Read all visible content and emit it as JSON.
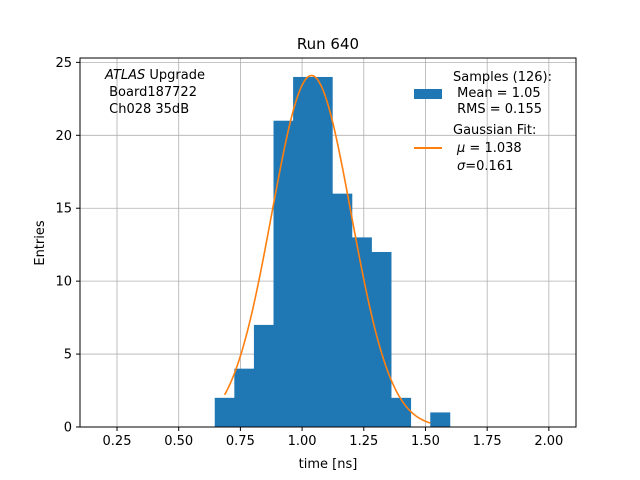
{
  "chart_data": {
    "type": "bar",
    "title": "Run 640",
    "xlabel": "time [ns]",
    "ylabel": "Entries",
    "xlim": [
      0.1,
      2.11
    ],
    "ylim": [
      0,
      25.3
    ],
    "xticks": [
      0.25,
      0.5,
      0.75,
      1.0,
      1.25,
      1.5,
      1.75,
      2.0
    ],
    "xtick_labels": [
      "0.25",
      "0.50",
      "0.75",
      "1.00",
      "1.25",
      "1.50",
      "1.75",
      "2.00"
    ],
    "yticks": [
      0,
      5,
      10,
      15,
      20,
      25
    ],
    "ytick_labels": [
      "0",
      "5",
      "10",
      "15",
      "20",
      "25"
    ],
    "grid": true,
    "bin_width": 0.0794,
    "bin_starts": [
      0.646,
      0.7254,
      0.8048,
      0.8842,
      0.9636,
      1.043,
      1.1224,
      1.2018,
      1.2812,
      1.3606,
      1.44,
      1.5194
    ],
    "values": [
      2,
      4,
      7,
      21,
      24,
      24,
      16,
      13,
      12,
      2,
      0,
      1
    ],
    "histogram_color": "#1f77b4",
    "fit": {
      "type": "gaussian",
      "amplitude": 24.1,
      "mu": 1.038,
      "sigma": 0.161,
      "x_range": [
        0.686,
        1.52
      ],
      "color": "#ff7f0e"
    },
    "annotation": {
      "line1_italic": "ATLAS",
      "line1_rest": " Upgrade",
      "line2": " Board187722",
      "line3": " Ch028 35dB"
    },
    "legend": {
      "placement": "top-right",
      "samples_line1": "Samples (126):",
      "samples_line2": " Mean = 1.05",
      "samples_line3": " RMS = 0.155",
      "fit_line1": "Gaussian Fit:",
      "fit_line2_sym": "μ",
      "fit_line2_rest": " = 1.038",
      "fit_line3_sym": "σ",
      "fit_line3_rest": "=0.161"
    }
  }
}
